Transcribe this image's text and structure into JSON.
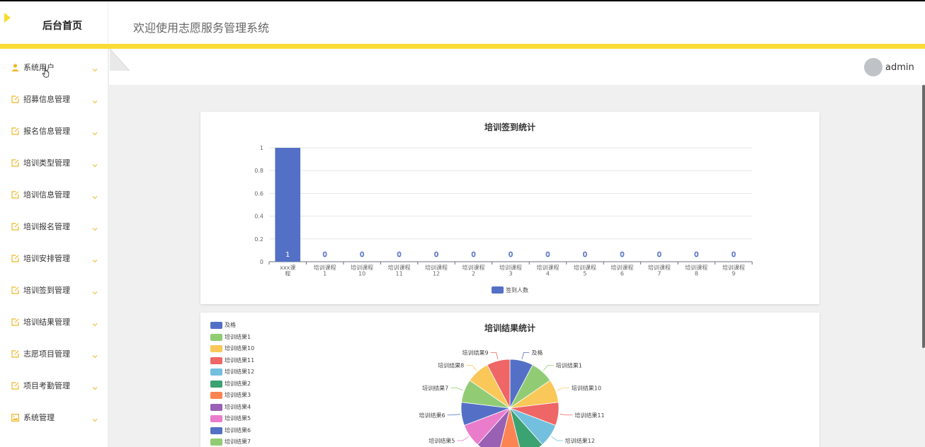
{
  "header": {
    "brand": "后台首页",
    "welcome": "欢迎使用志愿服务管理系统"
  },
  "user": {
    "name": "admin"
  },
  "colors": {
    "accent": "#fadc38",
    "icon": "#f0b828",
    "bar": "#5470c6"
  },
  "sidebar": {
    "items": [
      {
        "label": "系统用户",
        "icon": "user-icon"
      },
      {
        "label": "招募信息管理",
        "icon": "note-icon"
      },
      {
        "label": "报名信息管理",
        "icon": "note-icon"
      },
      {
        "label": "培训类型管理",
        "icon": "note-icon"
      },
      {
        "label": "培训信息管理",
        "icon": "note-icon"
      },
      {
        "label": "培训报名管理",
        "icon": "note-icon"
      },
      {
        "label": "培训安排管理",
        "icon": "note-icon"
      },
      {
        "label": "培训签到管理",
        "icon": "note-icon"
      },
      {
        "label": "培训结果管理",
        "icon": "note-icon"
      },
      {
        "label": "志愿项目管理",
        "icon": "note-icon"
      },
      {
        "label": "项目考勤管理",
        "icon": "note-icon"
      },
      {
        "label": "系统管理",
        "icon": "image-icon"
      }
    ]
  },
  "chart_data": [
    {
      "type": "bar",
      "title": "培训签到统计",
      "categories": [
        "xxx课程",
        "培训课程1",
        "培训课程10",
        "培训课程11",
        "培训课程12",
        "培训课程2",
        "培训课程3",
        "培训课程4",
        "培训课程5",
        "培训课程6",
        "培训课程7",
        "培训课程8",
        "培训课程9"
      ],
      "series": [
        {
          "name": "签到人数",
          "values": [
            1,
            0,
            0,
            0,
            0,
            0,
            0,
            0,
            0,
            0,
            0,
            0,
            0
          ]
        }
      ],
      "yticks": [
        "0",
        "0.2",
        "0.4",
        "0.6",
        "0.8",
        "1"
      ],
      "ylim": [
        0,
        1
      ],
      "grid": true,
      "legend": "bottom"
    },
    {
      "type": "pie",
      "title": "培训结果统计",
      "categories": [
        "及格",
        "培训结果1",
        "培训结果10",
        "培训结果11",
        "培训结果12",
        "培训结果2",
        "培训结果3",
        "培训结果4",
        "培训结果5",
        "培训结果6",
        "培训结果7",
        "培训结果8",
        "培训结果9"
      ],
      "values": [
        1,
        1,
        1,
        1,
        1,
        1,
        1,
        1,
        1,
        1,
        1,
        1,
        1
      ],
      "colors": [
        "#5470c6",
        "#91cc75",
        "#fac858",
        "#ee6666",
        "#73c0de",
        "#3ba272",
        "#fc8452",
        "#9a60b4",
        "#ea7ccc",
        "#5470c6",
        "#91cc75",
        "#fac858",
        "#ee6666"
      ],
      "legend": "top-left"
    }
  ]
}
